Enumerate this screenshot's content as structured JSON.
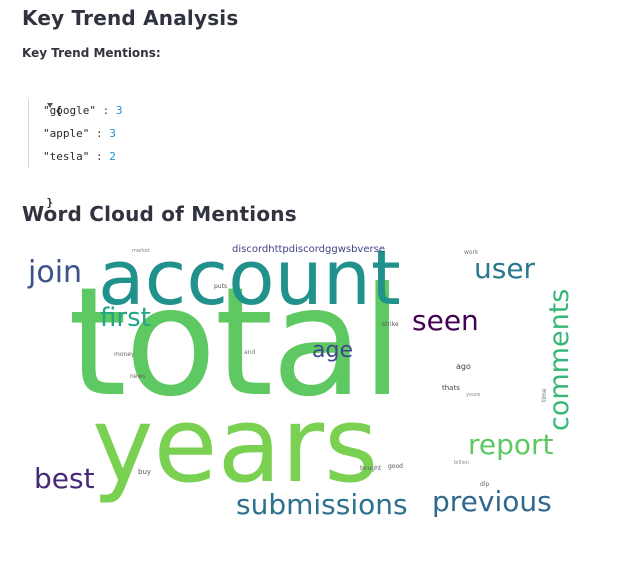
{
  "headings": {
    "trend": "Key Trend Analysis",
    "cloud": "Word Cloud of Mentions"
  },
  "trend_label": "Key Trend Mentions:",
  "json_view": {
    "open_brace": "{",
    "close_brace": "}",
    "entries": [
      {
        "key": "\"google\"",
        "value": "3"
      },
      {
        "key": "\"apple\"",
        "value": "3"
      },
      {
        "key": "\"tesla\"",
        "value": "2"
      }
    ]
  },
  "word_cloud": {
    "words": [
      {
        "text": "total",
        "color": "#5ec962"
      },
      {
        "text": "account",
        "color": "#21918c"
      },
      {
        "text": "years",
        "color": "#7ad151"
      },
      {
        "text": "submissions",
        "color": "#2c728e"
      },
      {
        "text": "previous",
        "color": "#31688e"
      },
      {
        "text": "report",
        "color": "#5ec962"
      },
      {
        "text": "comments",
        "color": "#35b779"
      },
      {
        "text": "join",
        "color": "#3b528b"
      },
      {
        "text": "user",
        "color": "#2a788e"
      },
      {
        "text": "first",
        "color": "#20a486"
      },
      {
        "text": "seen",
        "color": "#440154"
      },
      {
        "text": "best",
        "color": "#482878"
      },
      {
        "text": "age",
        "color": "#3e4989"
      },
      {
        "text": "discordhttpdiscordggwsbverse",
        "color": "#414487"
      },
      {
        "text": "puts",
        "color": "#555"
      },
      {
        "text": "money",
        "color": "#666"
      },
      {
        "text": "news",
        "color": "#666"
      },
      {
        "text": "and",
        "color": "#777"
      },
      {
        "text": "buy",
        "color": "#555"
      },
      {
        "text": "ago",
        "color": "#444"
      },
      {
        "text": "thats",
        "color": "#444"
      },
      {
        "text": "strike",
        "color": "#555"
      },
      {
        "text": "bought",
        "color": "#666"
      },
      {
        "text": "good",
        "color": "#555"
      },
      {
        "text": "market",
        "color": "#888"
      },
      {
        "text": "time",
        "color": "#777"
      },
      {
        "text": "dip",
        "color": "#666"
      },
      {
        "text": "work",
        "color": "#777"
      },
      {
        "text": "billion",
        "color": "#888"
      },
      {
        "text": "youre",
        "color": "#888"
      }
    ]
  }
}
